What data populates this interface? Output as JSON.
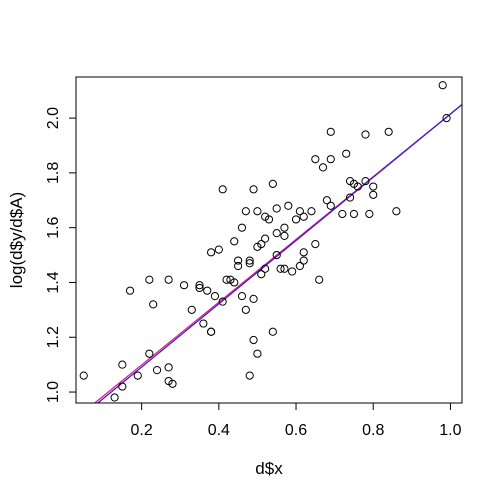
{
  "chart_data": {
    "type": "scatter",
    "title": "",
    "xlabel": "d$x",
    "ylabel": "log(d$y/d$A)",
    "xlim": [
      0.03,
      1.03
    ],
    "ylim": [
      0.96,
      2.15
    ],
    "x_ticks": [
      0.2,
      0.4,
      0.6,
      0.8,
      1.0
    ],
    "x_tick_labels": [
      "0.2",
      "0.4",
      "0.6",
      "0.8",
      "1.0"
    ],
    "y_ticks": [
      1.0,
      1.2,
      1.4,
      1.6,
      1.8,
      2.0
    ],
    "y_tick_labels": [
      "1.0",
      "1.2",
      "1.4",
      "1.6",
      "1.8",
      "2.0"
    ],
    "grid": false,
    "legend": "none",
    "point_style": "open-circle",
    "points": [
      [
        0.05,
        1.06
      ],
      [
        0.13,
        0.98
      ],
      [
        0.15,
        1.02
      ],
      [
        0.15,
        1.1
      ],
      [
        0.17,
        1.37
      ],
      [
        0.19,
        1.06
      ],
      [
        0.22,
        1.14
      ],
      [
        0.22,
        1.41
      ],
      [
        0.23,
        1.32
      ],
      [
        0.24,
        1.08
      ],
      [
        0.27,
        1.09
      ],
      [
        0.27,
        1.04
      ],
      [
        0.27,
        1.41
      ],
      [
        0.28,
        1.03
      ],
      [
        0.31,
        1.39
      ],
      [
        0.33,
        1.3
      ],
      [
        0.35,
        1.39
      ],
      [
        0.35,
        1.38
      ],
      [
        0.36,
        1.25
      ],
      [
        0.37,
        1.37
      ],
      [
        0.38,
        1.22
      ],
      [
        0.38,
        1.22
      ],
      [
        0.38,
        1.51
      ],
      [
        0.39,
        1.35
      ],
      [
        0.4,
        1.52
      ],
      [
        0.41,
        1.33
      ],
      [
        0.41,
        1.74
      ],
      [
        0.42,
        1.41
      ],
      [
        0.43,
        1.41
      ],
      [
        0.44,
        1.55
      ],
      [
        0.44,
        1.4
      ],
      [
        0.45,
        1.48
      ],
      [
        0.45,
        1.46
      ],
      [
        0.46,
        1.6
      ],
      [
        0.46,
        1.35
      ],
      [
        0.47,
        1.66
      ],
      [
        0.47,
        1.3
      ],
      [
        0.48,
        1.47
      ],
      [
        0.48,
        1.48
      ],
      [
        0.48,
        1.06
      ],
      [
        0.49,
        1.19
      ],
      [
        0.49,
        1.34
      ],
      [
        0.49,
        1.74
      ],
      [
        0.5,
        1.53
      ],
      [
        0.5,
        1.14
      ],
      [
        0.5,
        1.66
      ],
      [
        0.51,
        1.54
      ],
      [
        0.51,
        1.43
      ],
      [
        0.52,
        1.64
      ],
      [
        0.52,
        1.45
      ],
      [
        0.52,
        1.56
      ],
      [
        0.53,
        1.63
      ],
      [
        0.54,
        1.22
      ],
      [
        0.54,
        1.76
      ],
      [
        0.55,
        1.58
      ],
      [
        0.55,
        1.5
      ],
      [
        0.55,
        1.67
      ],
      [
        0.56,
        1.45
      ],
      [
        0.57,
        1.6
      ],
      [
        0.57,
        1.45
      ],
      [
        0.57,
        1.57
      ],
      [
        0.58,
        1.68
      ],
      [
        0.59,
        1.44
      ],
      [
        0.6,
        1.63
      ],
      [
        0.61,
        1.46
      ],
      [
        0.61,
        1.66
      ],
      [
        0.62,
        1.51
      ],
      [
        0.62,
        1.48
      ],
      [
        0.62,
        1.64
      ],
      [
        0.64,
        1.66
      ],
      [
        0.65,
        1.85
      ],
      [
        0.65,
        1.54
      ],
      [
        0.66,
        1.41
      ],
      [
        0.67,
        1.82
      ],
      [
        0.68,
        1.7
      ],
      [
        0.69,
        1.95
      ],
      [
        0.69,
        1.68
      ],
      [
        0.69,
        1.85
      ],
      [
        0.72,
        1.65
      ],
      [
        0.73,
        1.87
      ],
      [
        0.74,
        1.71
      ],
      [
        0.74,
        1.77
      ],
      [
        0.75,
        1.76
      ],
      [
        0.75,
        1.65
      ],
      [
        0.76,
        1.75
      ],
      [
        0.78,
        1.77
      ],
      [
        0.78,
        1.94
      ],
      [
        0.79,
        1.65
      ],
      [
        0.8,
        1.72
      ],
      [
        0.8,
        1.75
      ],
      [
        0.84,
        1.95
      ],
      [
        0.86,
        1.66
      ],
      [
        0.98,
        2.12
      ],
      [
        0.99,
        2.0
      ]
    ],
    "fit_lines": [
      {
        "color": "#e0218a",
        "intercept": 0.87,
        "slope": 1.145
      },
      {
        "color": "#3a1fd0",
        "intercept": 0.86,
        "slope": 1.155
      }
    ]
  }
}
